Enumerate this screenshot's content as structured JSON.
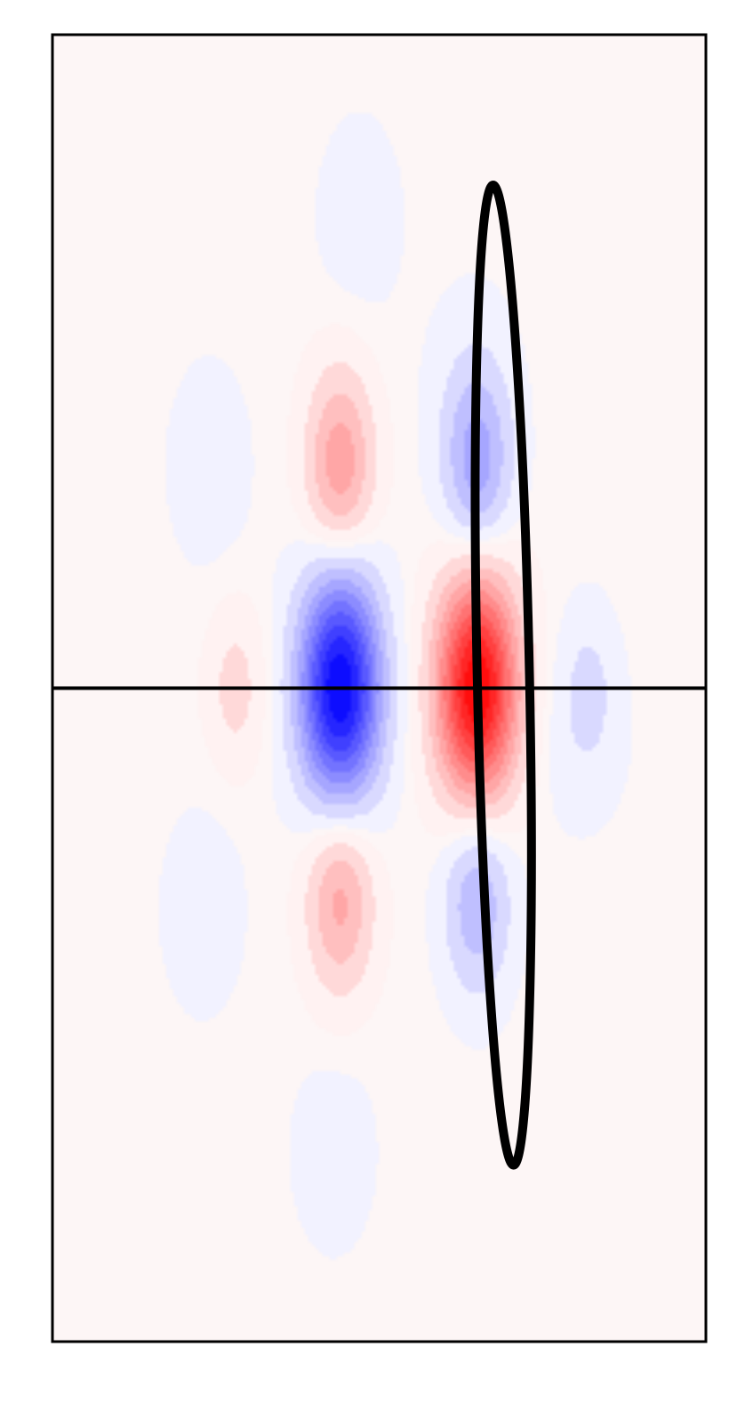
{
  "chart_data": {
    "type": "heatmap",
    "title": "",
    "xlabel": "",
    "ylabel": "",
    "xlim": [
      -1,
      1
    ],
    "ylim": [
      -2,
      2
    ],
    "ticks": "none",
    "grid": false,
    "legend": "none",
    "colormap": "bwr",
    "colors": {
      "negative": "#0000ff",
      "positive": "#ff0000",
      "background": "#fdf6f6",
      "lines": "#000000"
    },
    "contour_levels": 20,
    "value_range": [
      -1,
      1
    ],
    "lobes": [
      {
        "x": 0.3,
        "y": 0.0,
        "sx": 0.085,
        "sy": 0.24,
        "value": 1.0
      },
      {
        "x": -0.12,
        "y": 0.0,
        "sx": 0.085,
        "sy": 0.24,
        "value": -1.0
      },
      {
        "x": 0.3,
        "y": 0.68,
        "sx": 0.07,
        "sy": 0.2,
        "value": -0.34
      },
      {
        "x": -0.12,
        "y": 0.68,
        "sx": 0.07,
        "sy": 0.2,
        "value": 0.38
      },
      {
        "x": 0.3,
        "y": -0.64,
        "sx": 0.07,
        "sy": 0.2,
        "value": -0.3
      },
      {
        "x": -0.12,
        "y": -0.64,
        "sx": 0.07,
        "sy": 0.2,
        "value": 0.34
      },
      {
        "x": -0.44,
        "y": 0.0,
        "sx": 0.06,
        "sy": 0.17,
        "value": 0.14
      },
      {
        "x": 0.64,
        "y": 0.0,
        "sx": 0.06,
        "sy": 0.17,
        "value": -0.12
      },
      {
        "x": -0.52,
        "y": 0.68,
        "sx": 0.1,
        "sy": 0.25,
        "value": -0.05
      },
      {
        "x": -0.54,
        "y": -0.68,
        "sx": 0.1,
        "sy": 0.25,
        "value": -0.05
      },
      {
        "x": -0.06,
        "y": 1.44,
        "sx": 0.1,
        "sy": 0.24,
        "value": -0.05
      },
      {
        "x": -0.14,
        "y": -1.42,
        "sx": 0.1,
        "sy": 0.24,
        "value": -0.05
      },
      {
        "x": 0.28,
        "y": 0.9,
        "sx": 0.1,
        "sy": 0.24,
        "value": -0.05
      },
      {
        "x": 0.6,
        "y": -0.2,
        "sx": 0.12,
        "sy": 0.2,
        "value": -0.04
      }
    ],
    "overlays": [
      {
        "kind": "hline",
        "y": 0.0
      },
      {
        "kind": "ellipse",
        "cx": 0.38,
        "cy": 0.04,
        "rx": 0.08,
        "ry": 1.5,
        "angle_deg": -1.2
      }
    ]
  }
}
